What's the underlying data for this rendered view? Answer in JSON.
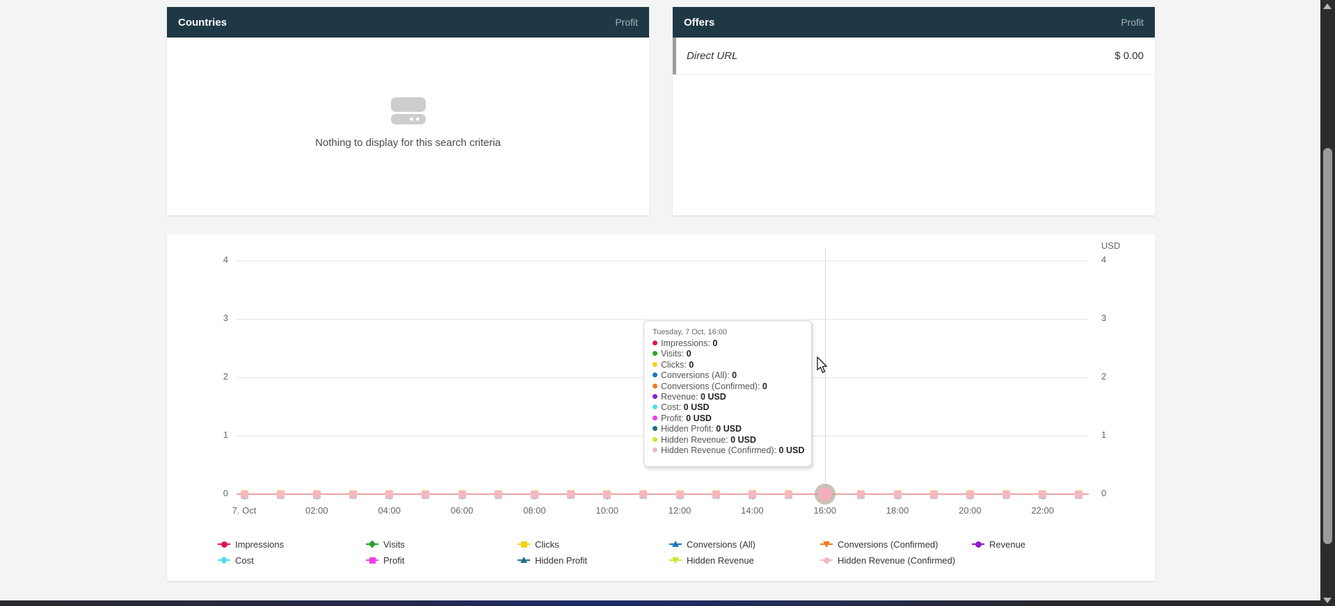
{
  "panels": {
    "countries": {
      "title": "Countries",
      "metric": "Profit",
      "empty_text": "Nothing to display for this search criteria"
    },
    "offers": {
      "title": "Offers",
      "metric": "Profit",
      "rows": [
        {
          "name": "Direct URL",
          "value": "$ 0.00"
        }
      ]
    }
  },
  "chart_data": {
    "type": "line",
    "title": "",
    "unit": "USD",
    "x_axis": {
      "tick_labels": [
        "7. Oct",
        "02:00",
        "04:00",
        "06:00",
        "08:00",
        "10:00",
        "12:00",
        "14:00",
        "16:00",
        "18:00",
        "20:00",
        "22:00"
      ],
      "total_points": 24,
      "points_per_tick_label": 2,
      "interval": "1 hour"
    },
    "y_axis": {
      "tick_labels": [
        "4",
        "3",
        "2",
        "1",
        "0"
      ],
      "range": [
        0,
        4
      ],
      "sides": [
        "left",
        "right"
      ],
      "grid": true
    },
    "series": [
      {
        "name": "Impressions",
        "color": "#e0174b",
        "marker": "circle",
        "constant_value": 0
      },
      {
        "name": "Visits",
        "color": "#28a42c",
        "marker": "diamond",
        "constant_value": 0
      },
      {
        "name": "Clicks",
        "color": "#f2d11d",
        "marker": "square",
        "constant_value": 0
      },
      {
        "name": "Conversions (All)",
        "color": "#1c74c8",
        "marker": "triangle",
        "constant_value": 0
      },
      {
        "name": "Conversions (Confirmed)",
        "color": "#f07a1d",
        "marker": "triangle-down",
        "constant_value": 0
      },
      {
        "name": "Revenue",
        "color": "#8a1ec4",
        "marker": "circle",
        "constant_value": 0
      },
      {
        "name": "Cost",
        "color": "#4edee9",
        "marker": "diamond",
        "constant_value": 0
      },
      {
        "name": "Profit",
        "color": "#ee3fe5",
        "marker": "square",
        "constant_value": 0
      },
      {
        "name": "Hidden Profit",
        "color": "#1c7180",
        "marker": "triangle",
        "constant_value": 0
      },
      {
        "name": "Hidden Revenue",
        "color": "#c8e634",
        "marker": "triangle-down",
        "constant_value": 0
      },
      {
        "name": "Hidden Revenue (Confirmed)",
        "color": "#f4b8c0",
        "marker": "circle",
        "constant_value": 0
      }
    ],
    "legend_position": "bottom",
    "hover": {
      "index": 16,
      "label": "16:00"
    },
    "tooltip": {
      "title": "Tuesday, 7 Oct, 16:00",
      "rows": [
        {
          "label": "Impressions",
          "value": "0",
          "color": "#e0174b"
        },
        {
          "label": "Visits",
          "value": "0",
          "color": "#28a42c"
        },
        {
          "label": "Clicks",
          "value": "0",
          "color": "#f2d11d"
        },
        {
          "label": "Conversions (All)",
          "value": "0",
          "color": "#1c74c8"
        },
        {
          "label": "Conversions (Confirmed)",
          "value": "0",
          "color": "#f07a1d"
        },
        {
          "label": "Revenue",
          "value": "0 USD",
          "color": "#8a1ec4"
        },
        {
          "label": "Cost",
          "value": "0 USD",
          "color": "#4edee9"
        },
        {
          "label": "Profit",
          "value": "0 USD",
          "color": "#ee3fe5"
        },
        {
          "label": "Hidden Profit",
          "value": "0 USD",
          "color": "#1c7180"
        },
        {
          "label": "Hidden Revenue",
          "value": "0 USD",
          "color": "#c8e634"
        },
        {
          "label": "Hidden Revenue (Confirmed)",
          "value": "0 USD",
          "color": "#f4b8c0"
        }
      ]
    }
  },
  "theme": {
    "header_bg": "#1f3845",
    "accent_line": "#eca4a4",
    "marker_fill": "#f5b7c0"
  }
}
